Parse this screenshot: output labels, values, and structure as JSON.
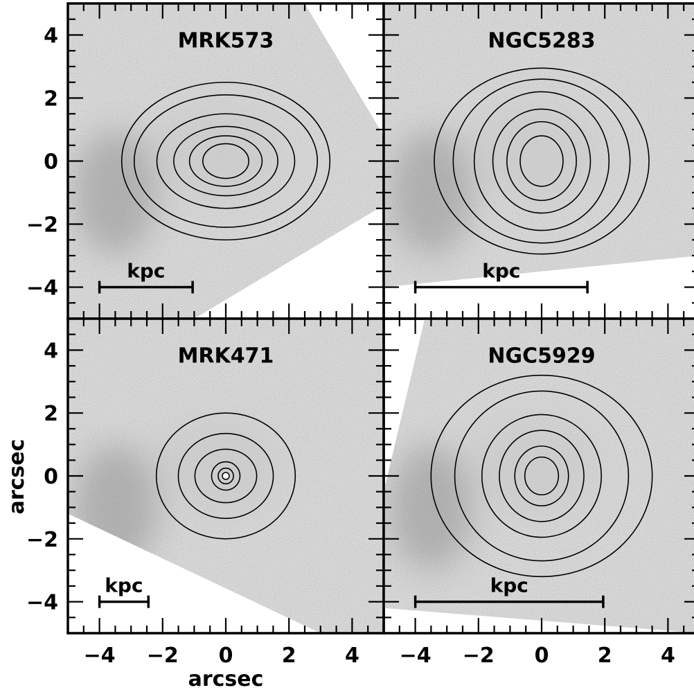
{
  "figure": {
    "xlabel": "arcsec",
    "ylabel": "arcsec"
  },
  "colors": {
    "frame": "#000000",
    "contour": "#000000",
    "background": "#ffffff",
    "image_mid_gray": "#a8a8a8"
  },
  "chart_data": [
    {
      "type": "heatmap",
      "title": "MRK573",
      "panel": "top-left",
      "xlim": [
        -5,
        5
      ],
      "ylim": [
        -5,
        5
      ],
      "x_ticks": [],
      "y_ticks": [
        -4,
        -2,
        0,
        2,
        4
      ],
      "scale_bar": {
        "label": "kpc",
        "x_start": -4,
        "x_end": -1.05,
        "y": -4
      },
      "contours": [
        {
          "rx": 0.75,
          "ry": 0.55
        },
        {
          "rx": 1.15,
          "ry": 0.8
        },
        {
          "rx": 1.6,
          "ry": 1.1
        },
        {
          "rx": 2.25,
          "ry": 1.5
        },
        {
          "rx": 2.9,
          "ry": 2.1
        },
        {
          "rx": 3.2,
          "ry": 2.5
        }
      ]
    },
    {
      "type": "heatmap",
      "title": "NGC5283",
      "panel": "top-right",
      "xlim": [
        -5,
        5
      ],
      "ylim": [
        -5,
        5
      ],
      "x_ticks": [],
      "y_ticks": [],
      "scale_bar": {
        "label": "kpc",
        "x_start": -4,
        "x_end": 1.45,
        "y": -4
      },
      "contours": [
        {
          "rx": 0.7,
          "ry": 0.8
        },
        {
          "rx": 1.1,
          "ry": 1.25
        },
        {
          "rx": 1.5,
          "ry": 1.65
        },
        {
          "rx": 2.2,
          "ry": 2.2
        },
        {
          "rx": 2.8,
          "ry": 2.6
        },
        {
          "rx": 3.3,
          "ry": 2.95
        }
      ]
    },
    {
      "type": "heatmap",
      "title": "MRK471",
      "panel": "bottom-left",
      "xlim": [
        -5,
        5
      ],
      "ylim": [
        -5,
        5
      ],
      "x_ticks": [
        -4,
        -2,
        0,
        2,
        4
      ],
      "y_ticks": [
        -4,
        -2,
        0,
        2,
        4
      ],
      "scale_bar": {
        "label": "kpc",
        "x_start": -4,
        "x_end": -2.45,
        "y": -4
      },
      "contours": [
        {
          "rx": 0.25,
          "ry": 0.25
        },
        {
          "rx": 0.45,
          "ry": 0.45
        },
        {
          "rx": 0.95,
          "ry": 0.85
        },
        {
          "rx": 1.55,
          "ry": 1.35
        },
        {
          "rx": 2.2,
          "ry": 2.0
        }
      ]
    },
    {
      "type": "heatmap",
      "title": "NGC5929",
      "panel": "bottom-right",
      "xlim": [
        -5,
        5
      ],
      "ylim": [
        -5,
        5
      ],
      "x_ticks": [
        -4,
        -2,
        0,
        2,
        4
      ],
      "y_ticks": [],
      "scale_bar": {
        "label": "kpc",
        "x_start": -4,
        "x_end": 1.95,
        "y": -4
      },
      "contours": [
        {
          "rx": 0.55,
          "ry": 0.6
        },
        {
          "rx": 0.85,
          "ry": 0.95
        },
        {
          "rx": 1.3,
          "ry": 1.45
        },
        {
          "rx": 1.95,
          "ry": 1.95
        },
        {
          "rx": 2.75,
          "ry": 2.7
        },
        {
          "rx": 3.4,
          "ry": 3.2
        }
      ]
    }
  ]
}
